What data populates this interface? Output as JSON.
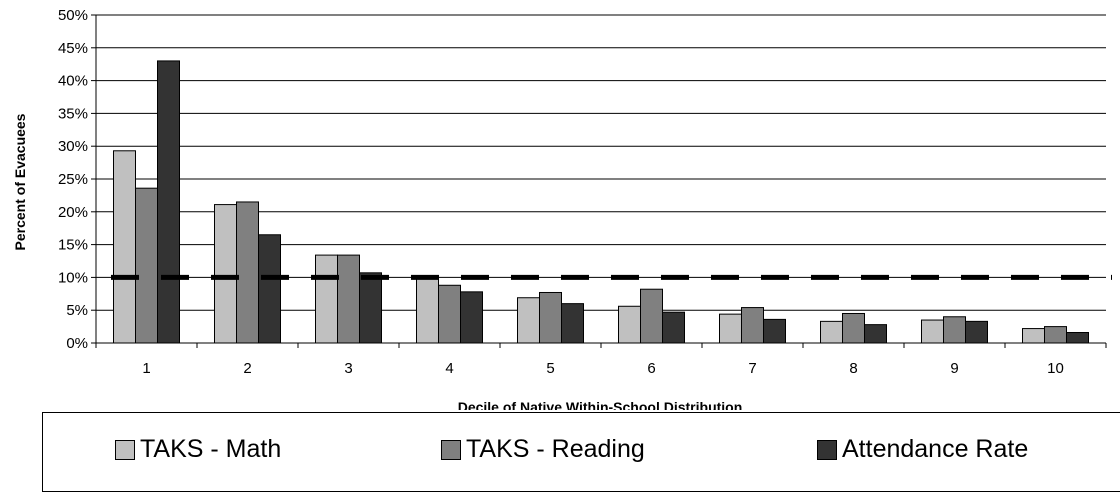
{
  "chart_data": {
    "type": "bar",
    "title": "",
    "xlabel": "Decile of Native Within-School Distribution",
    "ylabel": "Percent of Evacuees",
    "categories": [
      "1",
      "2",
      "3",
      "4",
      "5",
      "6",
      "7",
      "8",
      "9",
      "10"
    ],
    "series": [
      {
        "name": "TAKS - Math",
        "color": "#c0c0c0",
        "values": [
          29.3,
          21.1,
          13.4,
          10.0,
          6.9,
          5.6,
          4.4,
          3.3,
          3.5,
          2.2
        ]
      },
      {
        "name": "TAKS - Reading",
        "color": "#808080",
        "values": [
          23.6,
          21.5,
          13.4,
          8.8,
          7.7,
          8.2,
          5.4,
          4.5,
          4.0,
          2.5
        ]
      },
      {
        "name": "Attendance Rate",
        "color": "#333333",
        "values": [
          43.0,
          16.5,
          10.7,
          7.8,
          6.0,
          4.7,
          3.6,
          2.8,
          3.3,
          1.6
        ]
      }
    ],
    "reference_line": {
      "value": 10,
      "style": "dashed",
      "color": "#000000"
    },
    "ylim": [
      0,
      50
    ],
    "yticks": [
      "0%",
      "5%",
      "10%",
      "15%",
      "20%",
      "25%",
      "30%",
      "35%",
      "40%",
      "45%",
      "50%"
    ],
    "grid": true,
    "legend_position": "bottom"
  }
}
